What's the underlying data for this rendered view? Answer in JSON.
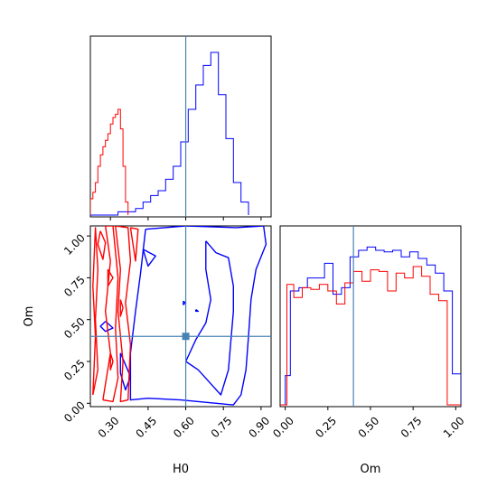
{
  "chart_data": [
    {
      "panel": "H0 marginal",
      "type": "histogram",
      "x_range": [
        0.22,
        0.94
      ],
      "truth_x": 0.6,
      "series": [
        {
          "color": "#0000ff",
          "bins": [
            [
              0.22,
              0.0
            ],
            [
              0.33,
              0.02
            ],
            [
              0.4,
              0.04
            ],
            [
              0.43,
              0.08
            ],
            [
              0.46,
              0.12
            ],
            [
              0.49,
              0.15
            ],
            [
              0.52,
              0.22
            ],
            [
              0.55,
              0.3
            ],
            [
              0.58,
              0.45
            ],
            [
              0.61,
              0.65
            ],
            [
              0.64,
              0.8
            ],
            [
              0.67,
              0.92
            ],
            [
              0.7,
              1.0
            ],
            [
              0.73,
              0.74
            ],
            [
              0.76,
              0.47
            ],
            [
              0.79,
              0.2
            ],
            [
              0.82,
              0.08
            ],
            [
              0.85,
              0.0
            ]
          ]
        },
        {
          "color": "#ff0000",
          "bins": [
            [
              0.22,
              0.1
            ],
            [
              0.23,
              0.14
            ],
            [
              0.24,
              0.2
            ],
            [
              0.25,
              0.3
            ],
            [
              0.26,
              0.37
            ],
            [
              0.27,
              0.42
            ],
            [
              0.28,
              0.46
            ],
            [
              0.29,
              0.5
            ],
            [
              0.3,
              0.56
            ],
            [
              0.31,
              0.6
            ],
            [
              0.32,
              0.62
            ],
            [
              0.33,
              0.65
            ],
            [
              0.34,
              0.53
            ],
            [
              0.35,
              0.3
            ],
            [
              0.36,
              0.08
            ],
            [
              0.37,
              0.0
            ]
          ]
        }
      ]
    },
    {
      "panel": "Om vs H0",
      "type": "contour",
      "x_ticks": [
        "0.30",
        "0.45",
        "0.60",
        "0.75",
        "0.90"
      ],
      "y_ticks": [
        "0.00",
        "0.25",
        "0.50",
        "0.75",
        "1.00"
      ],
      "xlabel": "H0",
      "ylabel": "Om",
      "x_range": [
        0.22,
        0.94
      ],
      "y_range": [
        -0.02,
        1.06
      ],
      "truth": [
        0.6,
        0.4
      ],
      "truth_color": "#4682b4",
      "series": [
        {
          "color": "#0000ff",
          "contours": [
            [
              [
                0.44,
                1.04
              ],
              [
                0.6,
                1.06
              ],
              [
                0.8,
                1.05
              ],
              [
                0.91,
                1.06
              ],
              [
                0.92,
                0.95
              ],
              [
                0.88,
                0.8
              ],
              [
                0.86,
                0.62
              ],
              [
                0.85,
                0.4
              ],
              [
                0.84,
                0.2
              ],
              [
                0.82,
                0.05
              ],
              [
                0.79,
                -0.01
              ],
              [
                0.58,
                0.02
              ],
              [
                0.45,
                0.03
              ],
              [
                0.38,
                0.02
              ],
              [
                0.38,
                0.3
              ],
              [
                0.4,
                0.55
              ],
              [
                0.42,
                0.78
              ],
              [
                0.44,
                1.04
              ]
            ],
            [
              [
                0.68,
                0.97
              ],
              [
                0.72,
                0.9
              ],
              [
                0.77,
                0.87
              ],
              [
                0.79,
                0.7
              ],
              [
                0.79,
                0.55
              ],
              [
                0.78,
                0.38
              ],
              [
                0.77,
                0.2
              ],
              [
                0.74,
                0.05
              ],
              [
                0.71,
                0.1
              ],
              [
                0.65,
                0.2
              ],
              [
                0.6,
                0.25
              ],
              [
                0.64,
                0.38
              ],
              [
                0.68,
                0.48
              ],
              [
                0.7,
                0.62
              ],
              [
                0.68,
                0.8
              ],
              [
                0.68,
                0.97
              ]
            ],
            [
              [
                0.34,
                0.3
              ],
              [
                0.38,
                0.16
              ],
              [
                0.36,
                0.08
              ],
              [
                0.34,
                0.18
              ],
              [
                0.34,
                0.3
              ]
            ],
            [
              [
                0.28,
                0.49
              ],
              [
                0.31,
                0.45
              ],
              [
                0.28,
                0.43
              ],
              [
                0.26,
                0.46
              ],
              [
                0.28,
                0.49
              ]
            ],
            [
              [
                0.43,
                0.92
              ],
              [
                0.48,
                0.88
              ],
              [
                0.45,
                0.82
              ],
              [
                0.43,
                0.92
              ]
            ],
            [
              [
                0.59,
                0.61
              ],
              [
                0.6,
                0.6
              ],
              [
                0.59,
                0.59
              ],
              [
                0.59,
                0.61
              ]
            ],
            [
              [
                0.64,
                0.56
              ],
              [
                0.65,
                0.55
              ],
              [
                0.64,
                0.55
              ],
              [
                0.64,
                0.56
              ]
            ]
          ]
        },
        {
          "color": "#ff0000",
          "contours": [
            [
              [
                0.23,
                0.05
              ],
              [
                0.24,
                0.4
              ],
              [
                0.23,
                0.7
              ],
              [
                0.24,
                1.05
              ],
              [
                0.25,
                0.8
              ],
              [
                0.24,
                0.5
              ],
              [
                0.25,
                0.2
              ],
              [
                0.23,
                0.05
              ]
            ],
            [
              [
                0.26,
                1.03
              ],
              [
                0.28,
                0.96
              ],
              [
                0.27,
                0.86
              ],
              [
                0.25,
                0.95
              ],
              [
                0.26,
                1.03
              ]
            ],
            [
              [
                0.27,
                0.02
              ],
              [
                0.3,
                0.3
              ],
              [
                0.28,
                0.55
              ],
              [
                0.3,
                0.85
              ],
              [
                0.28,
                1.06
              ],
              [
                0.31,
                1.06
              ],
              [
                0.33,
                0.75
              ],
              [
                0.32,
                0.45
              ],
              [
                0.33,
                0.15
              ],
              [
                0.31,
                0.01
              ],
              [
                0.27,
                0.02
              ]
            ],
            [
              [
                0.32,
                1.06
              ],
              [
                0.34,
                0.8
              ],
              [
                0.33,
                0.55
              ],
              [
                0.35,
                0.25
              ],
              [
                0.34,
                0.01
              ],
              [
                0.37,
                0.02
              ],
              [
                0.38,
                0.35
              ],
              [
                0.36,
                0.6
              ],
              [
                0.38,
                0.85
              ],
              [
                0.37,
                1.05
              ],
              [
                0.32,
                1.06
              ]
            ],
            [
              [
                0.38,
                1.05
              ],
              [
                0.41,
                1.04
              ],
              [
                0.4,
                0.85
              ],
              [
                0.38,
                1.05
              ]
            ],
            [
              [
                0.29,
                0.8
              ],
              [
                0.31,
                0.75
              ],
              [
                0.29,
                0.7
              ],
              [
                0.29,
                0.8
              ]
            ],
            [
              [
                0.3,
                0.3
              ],
              [
                0.31,
                0.25
              ],
              [
                0.3,
                0.2
              ],
              [
                0.3,
                0.3
              ]
            ],
            [
              [
                0.34,
                0.62
              ],
              [
                0.35,
                0.57
              ],
              [
                0.34,
                0.52
              ],
              [
                0.34,
                0.62
              ]
            ]
          ]
        }
      ]
    },
    {
      "panel": "Om marginal",
      "type": "histogram",
      "x_ticks": [
        "0.00",
        "0.25",
        "0.50",
        "0.75",
        "1.00"
      ],
      "xlabel": "Om",
      "x_range": [
        -0.03,
        1.03
      ],
      "truth_x": 0.4,
      "series": [
        {
          "color": "#0000ff",
          "bins": [
            [
              -0.03,
              0.0
            ],
            [
              0.0,
              0.18
            ],
            [
              0.03,
              0.7
            ],
            [
              0.08,
              0.72
            ],
            [
              0.13,
              0.78
            ],
            [
              0.18,
              0.78
            ],
            [
              0.23,
              0.87
            ],
            [
              0.28,
              0.68
            ],
            [
              0.33,
              0.72
            ],
            [
              0.38,
              0.91
            ],
            [
              0.43,
              0.95
            ],
            [
              0.48,
              0.97
            ],
            [
              0.53,
              0.95
            ],
            [
              0.58,
              0.94
            ],
            [
              0.63,
              0.95
            ],
            [
              0.68,
              0.91
            ],
            [
              0.73,
              0.94
            ],
            [
              0.78,
              0.9
            ],
            [
              0.83,
              0.86
            ],
            [
              0.88,
              0.81
            ],
            [
              0.93,
              0.7
            ],
            [
              0.98,
              0.19
            ],
            [
              1.03,
              0.0
            ]
          ]
        },
        {
          "color": "#ff0000",
          "bins": [
            [
              -0.03,
              0.0
            ],
            [
              0.0,
              0.0
            ],
            [
              0.01,
              0.74
            ],
            [
              0.05,
              0.66
            ],
            [
              0.1,
              0.72
            ],
            [
              0.15,
              0.71
            ],
            [
              0.2,
              0.74
            ],
            [
              0.25,
              0.7
            ],
            [
              0.3,
              0.62
            ],
            [
              0.35,
              0.75
            ],
            [
              0.4,
              0.82
            ],
            [
              0.45,
              0.76
            ],
            [
              0.5,
              0.83
            ],
            [
              0.55,
              0.82
            ],
            [
              0.6,
              0.7
            ],
            [
              0.65,
              0.81
            ],
            [
              0.7,
              0.78
            ],
            [
              0.75,
              0.85
            ],
            [
              0.8,
              0.79
            ],
            [
              0.85,
              0.68
            ],
            [
              0.9,
              0.64
            ],
            [
              0.95,
              0.0
            ],
            [
              1.03,
              0.0
            ]
          ]
        }
      ]
    }
  ]
}
